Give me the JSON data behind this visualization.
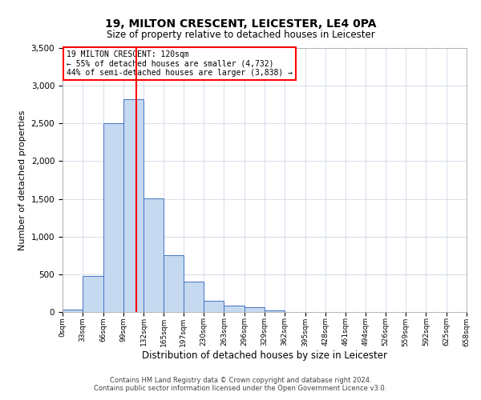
{
  "title": "19, MILTON CRESCENT, LEICESTER, LE4 0PA",
  "subtitle": "Size of property relative to detached houses in Leicester",
  "xlabel": "Distribution of detached houses by size in Leicester",
  "ylabel": "Number of detached properties",
  "bin_edges": [
    0,
    33,
    66,
    99,
    132,
    165,
    197,
    230,
    263,
    296,
    329,
    362,
    395,
    428,
    461,
    494,
    526,
    559,
    592,
    625,
    658
  ],
  "bin_labels": [
    "0sqm",
    "33sqm",
    "66sqm",
    "99sqm",
    "132sqm",
    "165sqm",
    "197sqm",
    "230sqm",
    "263sqm",
    "296sqm",
    "329sqm",
    "362sqm",
    "395sqm",
    "428sqm",
    "461sqm",
    "494sqm",
    "526sqm",
    "559sqm",
    "592sqm",
    "625sqm",
    "658sqm"
  ],
  "counts": [
    30,
    480,
    2500,
    2820,
    1510,
    750,
    400,
    150,
    80,
    60,
    25,
    0,
    0,
    0,
    0,
    0,
    0,
    0,
    0,
    0
  ],
  "bar_color": "#c5d9f0",
  "bar_edge_color": "#4472c4",
  "vline_x": 120,
  "vline_color": "red",
  "ylim": [
    0,
    3500
  ],
  "yticks": [
    0,
    500,
    1000,
    1500,
    2000,
    2500,
    3000,
    3500
  ],
  "annotation_text": "19 MILTON CRESCENT: 120sqm\n← 55% of detached houses are smaller (4,732)\n44% of semi-detached houses are larger (3,838) →",
  "annotation_box_color": "white",
  "annotation_box_edge": "red",
  "footer1": "Contains HM Land Registry data © Crown copyright and database right 2024.",
  "footer2": "Contains public sector information licensed under the Open Government Licence v3.0.",
  "background_color": "white",
  "grid_color": "#d0d8e8"
}
